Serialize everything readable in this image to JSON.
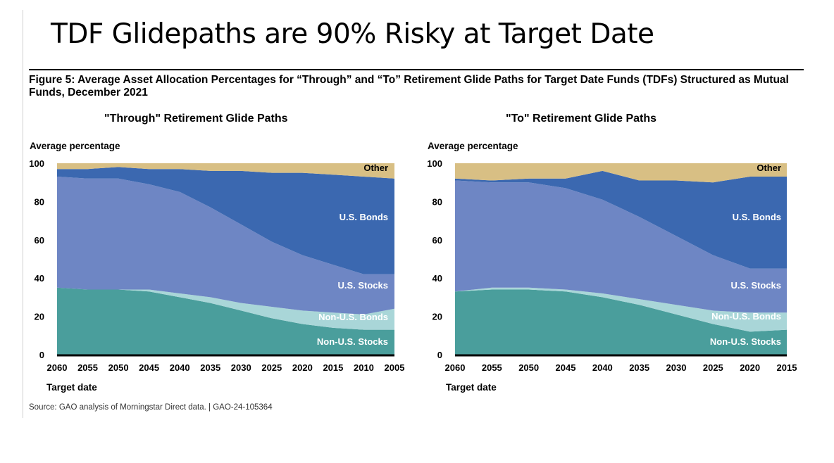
{
  "slide_title": "TDF Glidepaths are 90% Risky at Target Date",
  "figure_caption": "Figure 5: Average Asset Allocation Percentages for “Through” and “To” Retirement Glide Paths for Target Date Funds (TDFs) Structured as Mutual Funds, December 2021",
  "source": "Source: GAO analysis of Morningstar Direct data.  |  GAO-24-105364",
  "colors": {
    "Non-U.S. Stocks": "#4a9e9c",
    "Non-U.S. Bonds": "#a9d6d8",
    "U.S. Stocks": "#6e86c4",
    "U.S. Bonds": "#3b68b0",
    "Other": "#d8bf84"
  },
  "chart_data": [
    {
      "type": "area",
      "stacked": true,
      "title": "\"Through\" Retirement Glide Paths",
      "ylabel": "Average percentage",
      "xlabel": "Target date",
      "ylim": [
        0,
        100
      ],
      "yticks": [
        0,
        20,
        40,
        60,
        80,
        100
      ],
      "categories": [
        "2060",
        "2055",
        "2050",
        "2045",
        "2040",
        "2035",
        "2030",
        "2025",
        "2020",
        "2015",
        "2010",
        "2005"
      ],
      "series": [
        {
          "name": "Non-U.S. Stocks",
          "values": [
            35,
            34,
            34,
            33,
            30,
            27,
            23,
            19,
            16,
            14,
            13,
            13
          ]
        },
        {
          "name": "Non-U.S. Bonds",
          "values": [
            0,
            0,
            0,
            1,
            2,
            3,
            4,
            6,
            7,
            8,
            8,
            11
          ]
        },
        {
          "name": "U.S. Stocks",
          "values": [
            58,
            58,
            58,
            55,
            53,
            47,
            41,
            34,
            29,
            25,
            21,
            18
          ]
        },
        {
          "name": "U.S. Bonds",
          "values": [
            4,
            5,
            6,
            8,
            12,
            19,
            28,
            36,
            43,
            47,
            51,
            50
          ]
        },
        {
          "name": "Other",
          "values": [
            3,
            3,
            2,
            3,
            3,
            4,
            4,
            5,
            5,
            6,
            7,
            8
          ]
        }
      ]
    },
    {
      "type": "area",
      "stacked": true,
      "title": "\"To\" Retirement Glide Paths",
      "ylabel": "Average percentage",
      "xlabel": "Target date",
      "ylim": [
        0,
        100
      ],
      "yticks": [
        0,
        20,
        40,
        60,
        80,
        100
      ],
      "categories": [
        "2060",
        "2055",
        "2050",
        "2045",
        "2040",
        "2035",
        "2030",
        "2025",
        "2020",
        "2015"
      ],
      "series": [
        {
          "name": "Non-U.S. Stocks",
          "values": [
            33,
            34,
            34,
            33,
            30,
            26,
            21,
            16,
            12,
            13
          ]
        },
        {
          "name": "Non-U.S. Bonds",
          "values": [
            0,
            1,
            1,
            1,
            2,
            3,
            5,
            7,
            10,
            9
          ]
        },
        {
          "name": "U.S. Stocks",
          "values": [
            58,
            55,
            55,
            53,
            49,
            43,
            36,
            29,
            23,
            23
          ]
        },
        {
          "name": "U.S. Bonds",
          "values": [
            1,
            1,
            2,
            5,
            15,
            19,
            29,
            38,
            48,
            48
          ]
        },
        {
          "name": "Other",
          "values": [
            8,
            9,
            8,
            8,
            4,
            9,
            9,
            10,
            7,
            7
          ]
        }
      ]
    }
  ]
}
